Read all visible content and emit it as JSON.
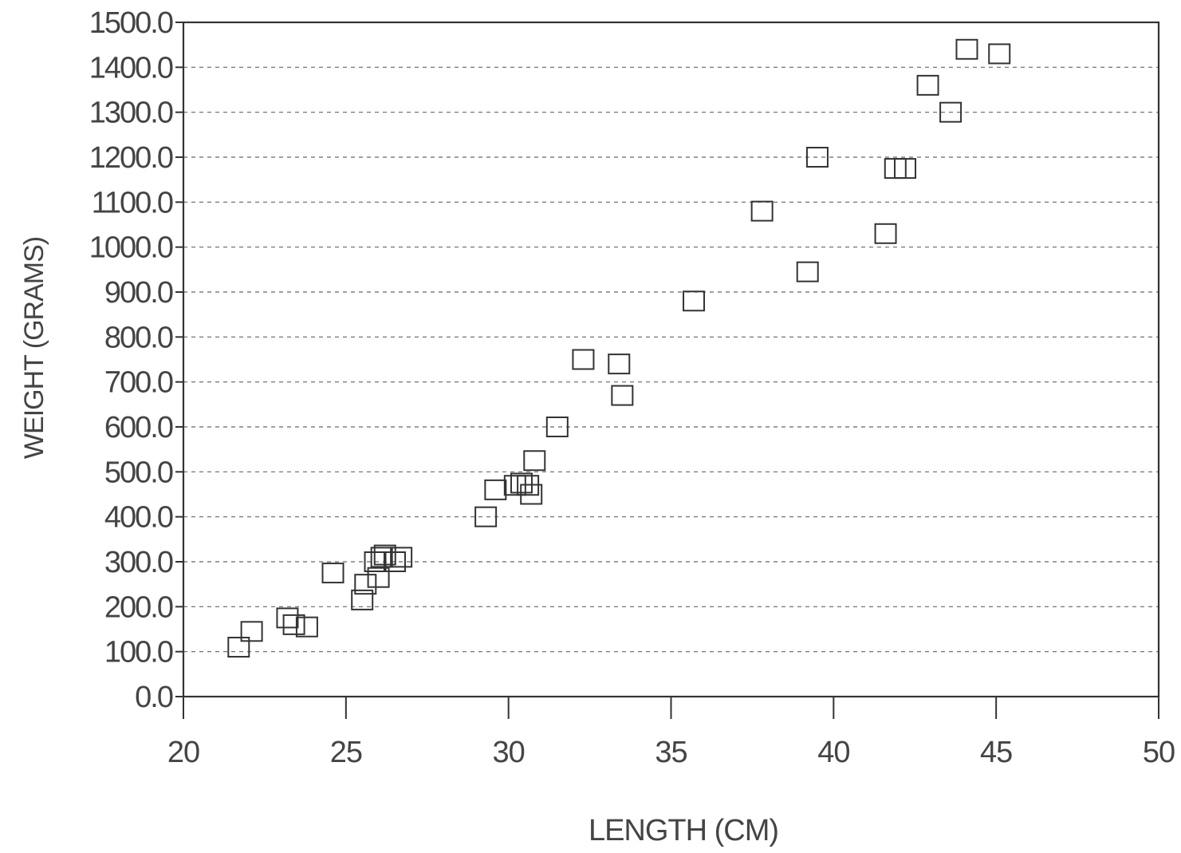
{
  "chart_data": {
    "type": "scatter",
    "title": "",
    "xlabel": "LENGTH (CM)",
    "ylabel": "WEIGHT (GRAMS)",
    "xlim": [
      20,
      50
    ],
    "ylim": [
      0,
      1500
    ],
    "x_ticks": [
      20,
      25,
      30,
      35,
      40,
      45,
      50
    ],
    "x_tick_labels": [
      "20",
      "25",
      "30",
      "35",
      "40",
      "45",
      "50"
    ],
    "y_ticks": [
      0,
      100,
      200,
      300,
      400,
      500,
      600,
      700,
      800,
      900,
      1000,
      1100,
      1200,
      1300,
      1400,
      1500
    ],
    "y_tick_labels": [
      "0.0",
      "100.0",
      "200.0",
      "300.0",
      "400.0",
      "500.0",
      "600.0",
      "700.0",
      "800.0",
      "900.0",
      "1000.0",
      "1100.0",
      "1200.0",
      "1300.0",
      "1400.0",
      "1500.0"
    ],
    "grid": "horizontal dashed",
    "marker": "open-square",
    "series": [
      {
        "x": [
          21.7,
          22.1,
          23.2,
          23.4,
          23.8,
          24.6,
          25.5,
          25.6,
          25.9,
          26.0,
          26.1,
          26.2,
          26.5,
          26.7,
          29.3,
          29.6,
          30.2,
          30.4,
          30.6,
          30.7,
          30.8,
          31.5,
          32.3,
          33.4,
          33.5,
          35.7,
          37.8,
          39.2,
          39.5,
          41.6,
          41.9,
          42.2,
          42.9,
          43.6,
          44.1,
          45.1
        ],
        "y": [
          110,
          145,
          175,
          160,
          155,
          275,
          215,
          250,
          300,
          265,
          310,
          315,
          300,
          310,
          400,
          460,
          470,
          475,
          470,
          450,
          525,
          600,
          750,
          740,
          670,
          880,
          1080,
          945,
          1200,
          1030,
          1175,
          1175,
          1360,
          1300,
          1440,
          1430
        ]
      }
    ]
  }
}
